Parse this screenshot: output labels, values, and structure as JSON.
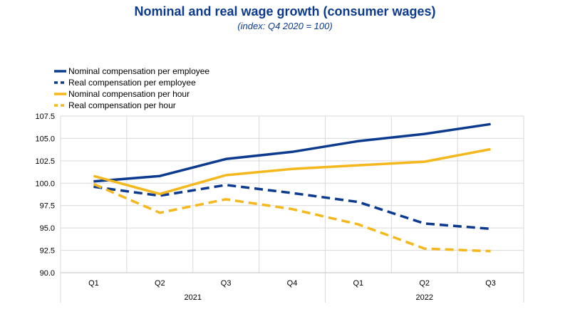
{
  "chart_data": {
    "type": "line",
    "title": "Nominal and real wage growth (consumer wages)",
    "subtitle": "(index: Q4 2020 = 100)",
    "categories": [
      "Q1",
      "Q2",
      "Q3",
      "Q4",
      "Q1",
      "Q2",
      "Q3"
    ],
    "groups": [
      {
        "label": "2021",
        "start": 0,
        "end": 3
      },
      {
        "label": "2022",
        "start": 4,
        "end": 6
      }
    ],
    "ylim": [
      90.0,
      107.5
    ],
    "yticks": [
      "107.5",
      "105.0",
      "102.5",
      "100.0",
      "97.5",
      "95.0",
      "92.5",
      "90.0"
    ],
    "grid": true,
    "legend_position": "top-left",
    "series": [
      {
        "name": "Nominal compensation per employee",
        "color": "#0b3a8e",
        "dash": "solid",
        "values": [
          100.2,
          100.8,
          102.7,
          103.5,
          104.7,
          105.5,
          106.6
        ]
      },
      {
        "name": "Real compensation per employee",
        "color": "#0b3a8e",
        "dash": "dashed",
        "values": [
          99.6,
          98.6,
          99.8,
          98.9,
          97.9,
          95.5,
          94.9
        ]
      },
      {
        "name": "Nominal compensation per hour",
        "color": "#f5b81c",
        "dash": "solid",
        "values": [
          100.8,
          98.8,
          100.9,
          101.6,
          102.0,
          102.4,
          103.8
        ]
      },
      {
        "name": "Real compensation per hour",
        "color": "#f5b81c",
        "dash": "dashed",
        "values": [
          99.9,
          96.7,
          98.2,
          97.1,
          95.4,
          92.7,
          92.4
        ]
      }
    ]
  }
}
